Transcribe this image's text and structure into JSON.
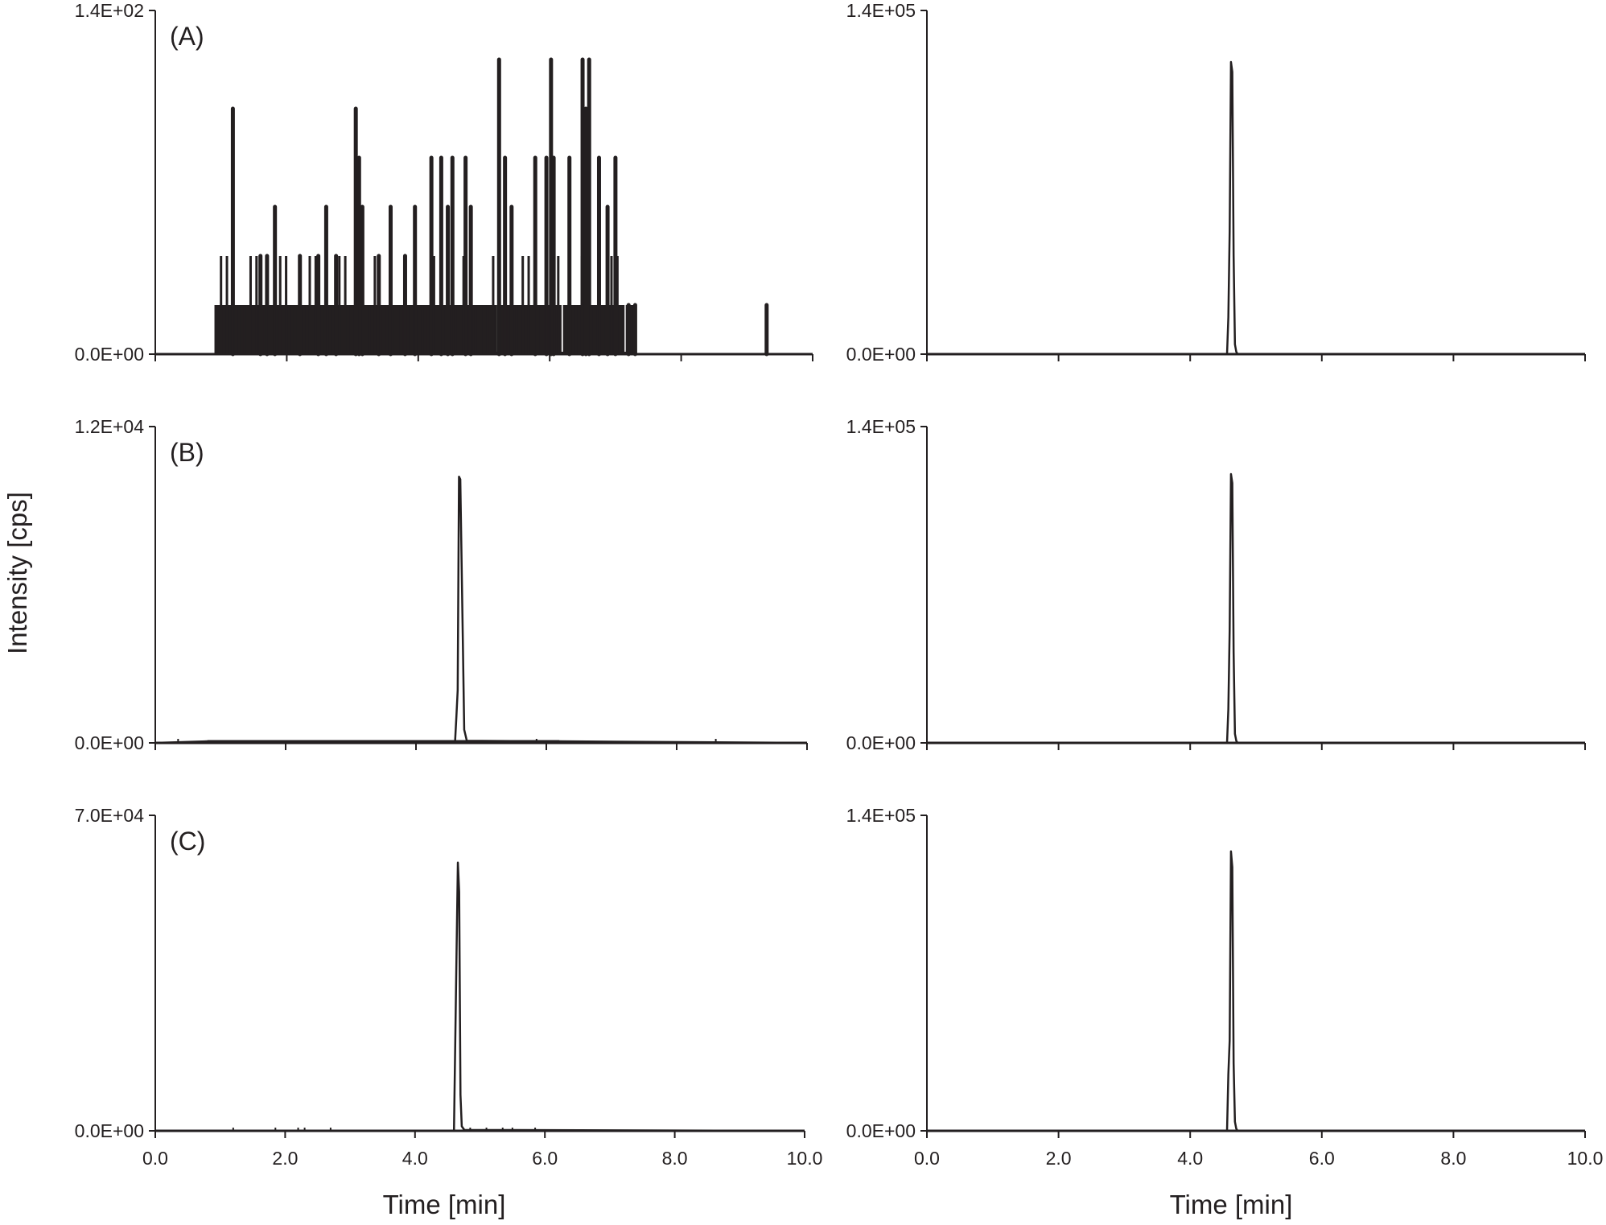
{
  "figure": {
    "y_axis_title": "Intensity [cps]",
    "x_axis_title_left": "Time [min]",
    "x_axis_title_right": "Time [min]",
    "x_tick_labels": [
      "0.0",
      "2.0",
      "4.0",
      "6.0",
      "8.0",
      "10.0"
    ],
    "line_color": "#231f20"
  },
  "panels": [
    {
      "id": "A-left",
      "label": "(A)",
      "ymax_label": "1.4E+02",
      "ymin_label": "0.0E+00"
    },
    {
      "id": "A-right",
      "label": "",
      "ymax_label": "1.4E+05",
      "ymin_label": "0.0E+00"
    },
    {
      "id": "B-left",
      "label": "(B)",
      "ymax_label": "1.2E+04",
      "ymin_label": "0.0E+00"
    },
    {
      "id": "B-right",
      "label": "",
      "ymax_label": "1.4E+05",
      "ymin_label": "0.0E+00"
    },
    {
      "id": "C-left",
      "label": "(C)",
      "ymax_label": "7.0E+04",
      "ymin_label": "0.0E+00"
    },
    {
      "id": "C-right",
      "label": "",
      "ymax_label": "1.4E+05",
      "ymin_label": "0.0E+00"
    }
  ],
  "chart_data": [
    {
      "type": "line",
      "title": "(A) left",
      "xlabel": "",
      "ylabel": "Intensity [cps]",
      "xlim": [
        0,
        10
      ],
      "ylim": [
        0,
        140
      ],
      "x_ticks": [
        0,
        2,
        4,
        6,
        8,
        10
      ],
      "y_ticks": [
        0,
        140
      ],
      "grid": false,
      "description": "noisy spike train (counting noise) between ~0.9 and ~7.3 min with levels 20/40/60/80/100/120 cps, isolated 20 cps spike at ~9.3 min",
      "series": [
        {
          "name": "A-left",
          "spikes": [
            {
              "x": 1.18,
              "y": 100
            },
            {
              "x": 1.6,
              "y": 40
            },
            {
              "x": 1.7,
              "y": 40
            },
            {
              "x": 1.82,
              "y": 60
            },
            {
              "x": 2.2,
              "y": 40
            },
            {
              "x": 2.48,
              "y": 40
            },
            {
              "x": 2.6,
              "y": 60
            },
            {
              "x": 2.75,
              "y": 40
            },
            {
              "x": 3.05,
              "y": 100
            },
            {
              "x": 3.1,
              "y": 80
            },
            {
              "x": 3.15,
              "y": 60
            },
            {
              "x": 3.4,
              "y": 40
            },
            {
              "x": 3.58,
              "y": 60
            },
            {
              "x": 3.8,
              "y": 40
            },
            {
              "x": 3.95,
              "y": 60
            },
            {
              "x": 4.2,
              "y": 80
            },
            {
              "x": 4.35,
              "y": 80
            },
            {
              "x": 4.45,
              "y": 60
            },
            {
              "x": 4.52,
              "y": 80
            },
            {
              "x": 4.72,
              "y": 80
            },
            {
              "x": 4.8,
              "y": 60
            },
            {
              "x": 5.23,
              "y": 120
            },
            {
              "x": 5.32,
              "y": 80
            },
            {
              "x": 5.42,
              "y": 60
            },
            {
              "x": 5.78,
              "y": 80
            },
            {
              "x": 5.95,
              "y": 80
            },
            {
              "x": 6.02,
              "y": 120
            },
            {
              "x": 6.06,
              "y": 80
            },
            {
              "x": 6.3,
              "y": 80
            },
            {
              "x": 6.5,
              "y": 120
            },
            {
              "x": 6.55,
              "y": 100
            },
            {
              "x": 6.6,
              "y": 120
            },
            {
              "x": 6.75,
              "y": 80
            },
            {
              "x": 6.88,
              "y": 60
            },
            {
              "x": 7.0,
              "y": 80
            },
            {
              "x": 7.2,
              "y": 20
            },
            {
              "x": 7.3,
              "y": 20
            },
            {
              "x": 9.3,
              "y": 20
            }
          ],
          "dense_band": {
            "x_start": 0.9,
            "x_end": 7.3,
            "level": 20
          }
        }
      ]
    },
    {
      "type": "line",
      "title": "(A) right",
      "xlabel": "Time [min]",
      "xlim": [
        0,
        10
      ],
      "ylim": [
        0,
        140000
      ],
      "y_ticks": [
        0,
        140000
      ],
      "series": [
        {
          "name": "A-right",
          "x": [
            0,
            4.56,
            4.58,
            4.6,
            4.62,
            4.64,
            4.66,
            4.68,
            4.7,
            4.72,
            10
          ],
          "y": [
            0,
            0,
            15000,
            50000,
            119000,
            115000,
            40000,
            4000,
            1000,
            0,
            0
          ]
        }
      ]
    },
    {
      "type": "line",
      "title": "(B) left",
      "xlim": [
        0,
        10
      ],
      "ylim": [
        0,
        12000
      ],
      "y_ticks": [
        0,
        12000
      ],
      "series": [
        {
          "name": "B-left",
          "x": [
            0,
            0.8,
            4.6,
            4.62,
            4.64,
            4.66,
            4.68,
            4.72,
            4.74,
            4.78,
            6.2,
            10
          ],
          "y": [
            0,
            60,
            60,
            1000,
            2000,
            10100,
            10000,
            3700,
            500,
            80,
            60,
            0
          ]
        }
      ]
    },
    {
      "type": "line",
      "title": "(B) right",
      "xlim": [
        0,
        10
      ],
      "ylim": [
        0,
        140000
      ],
      "y_ticks": [
        0,
        140000
      ],
      "series": [
        {
          "name": "B-right",
          "x": [
            0,
            4.56,
            4.58,
            4.6,
            4.62,
            4.64,
            4.66,
            4.68,
            4.7,
            4.72,
            10
          ],
          "y": [
            0,
            0,
            15000,
            50000,
            119000,
            115000,
            40000,
            4000,
            1000,
            0,
            0
          ]
        }
      ]
    },
    {
      "type": "line",
      "title": "(C) left",
      "xlabel": "Time [min]",
      "xlim": [
        0,
        10
      ],
      "ylim": [
        0,
        70000
      ],
      "y_ticks": [
        0,
        70000
      ],
      "series": [
        {
          "name": "C-left",
          "x": [
            0,
            4.6,
            4.62,
            4.64,
            4.66,
            4.68,
            4.7,
            4.72,
            4.76,
            10
          ],
          "y": [
            0,
            0,
            20000,
            40000,
            59500,
            53000,
            8000,
            1000,
            200,
            0
          ]
        }
      ]
    },
    {
      "type": "line",
      "title": "(C) right",
      "xlabel": "Time [min]",
      "xlim": [
        0,
        10
      ],
      "ylim": [
        0,
        140000
      ],
      "y_ticks": [
        0,
        140000
      ],
      "series": [
        {
          "name": "C-right",
          "x": [
            0,
            4.56,
            4.58,
            4.6,
            4.62,
            4.64,
            4.66,
            4.68,
            4.7,
            4.72,
            10
          ],
          "y": [
            0,
            0,
            25000,
            40000,
            124000,
            117000,
            30000,
            4000,
            1000,
            0,
            0
          ]
        }
      ]
    }
  ]
}
